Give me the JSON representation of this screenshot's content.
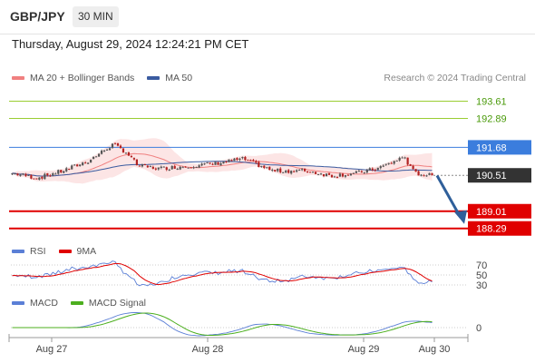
{
  "header": {
    "symbol": "GBP/JPY",
    "interval": "30 MIN"
  },
  "datetime": "Thursday, August 29, 2024 12:24:21 PM CET",
  "legend_main": {
    "ma20": "MA 20 + Bollinger Bands",
    "ma50": "MA 50"
  },
  "credit": "Research © 2024 Trading Central",
  "legend_rsi": {
    "rsi": "RSI",
    "ma9": "9MA"
  },
  "legend_macd": {
    "macd": "MACD",
    "signal": "MACD Signal"
  },
  "colors": {
    "up_candle": "#555555",
    "down_candle": "#b22222",
    "ma20": "#f08080",
    "band": "#fbe0e0",
    "ma50": "#3a5ba0",
    "resistance": "#9acd32",
    "pivot": "#3b7ddd",
    "support": "#e00000",
    "price_tag": "#333333",
    "arrow": "#2f5f9a",
    "rsi": "#5b7fd6",
    "ma9": "#e00000",
    "macd": "#5b7fd6",
    "macd_signal": "#4caf1e"
  },
  "chart_data": [
    {
      "type": "candlestick",
      "title": "GBP/JPY 30 MIN",
      "x_ticks": [
        "Aug 27",
        "Aug 28",
        "Aug 29",
        "Aug 30"
      ],
      "ylim": [
        187.9,
        194.2
      ],
      "current_price": 190.51,
      "levels": [
        {
          "value": 193.61,
          "label": "193.61",
          "kind": "resistance"
        },
        {
          "value": 192.89,
          "label": "192.89",
          "kind": "resistance"
        },
        {
          "value": 191.68,
          "label": "191.68",
          "kind": "pivot"
        },
        {
          "value": 189.01,
          "label": "189.01",
          "kind": "support"
        },
        {
          "value": 188.29,
          "label": "188.29",
          "kind": "support"
        }
      ],
      "projection": {
        "from": 190.5,
        "to": 188.29
      },
      "series": [
        {
          "name": "MA 20 + Bollinger Bands"
        },
        {
          "name": "MA 50"
        }
      ]
    },
    {
      "type": "line",
      "title": "RSI",
      "y_ticks": [
        70,
        50,
        30
      ],
      "series": [
        {
          "name": "RSI"
        },
        {
          "name": "9MA"
        }
      ]
    },
    {
      "type": "line",
      "title": "MACD",
      "y_ticks": [
        0
      ],
      "series": [
        {
          "name": "MACD"
        },
        {
          "name": "MACD Signal"
        }
      ]
    }
  ]
}
